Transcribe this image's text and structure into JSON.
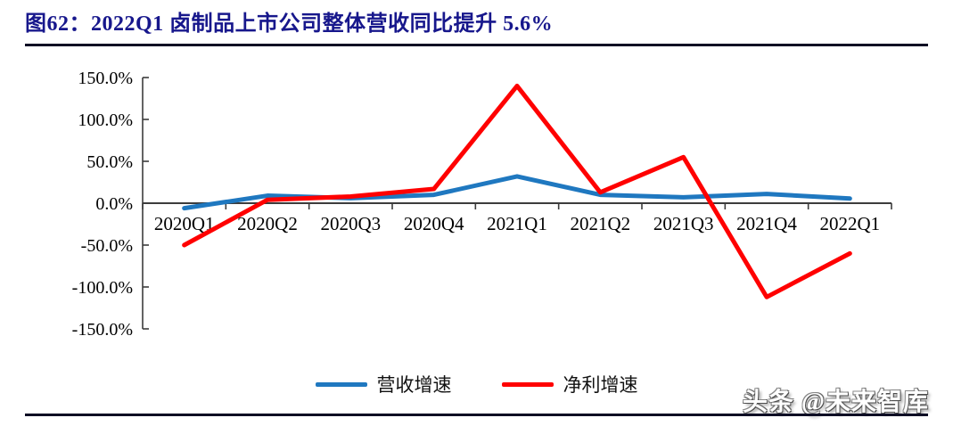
{
  "chart_data": {
    "type": "line",
    "title": "图62：2022Q1 卤制品上市公司整体营收同比提升 5.6%",
    "categories": [
      "2020Q1",
      "2020Q2",
      "2020Q3",
      "2020Q4",
      "2021Q1",
      "2021Q2",
      "2021Q3",
      "2021Q4",
      "2022Q1"
    ],
    "series": [
      {
        "name": "营收增速",
        "color": "#1f78c0",
        "values": [
          -6,
          9,
          6,
          10,
          32,
          10,
          7,
          11,
          5.6
        ]
      },
      {
        "name": "净利增速",
        "color": "#ff0000",
        "values": [
          -50,
          4,
          8,
          17,
          140,
          13,
          55,
          -112,
          -60
        ]
      }
    ],
    "xlabel": "",
    "ylabel": "",
    "ylim": [
      -150,
      150
    ],
    "y_ticks": [
      "150.0%",
      "100.0%",
      "50.0%",
      "0.0%",
      "-50.0%",
      "-100.0%",
      "-150.0%"
    ],
    "grid": false,
    "legend_position": "bottom"
  },
  "watermark": "头条 @未来智库",
  "colors": {
    "title": "#17178c",
    "divider": "#0e0e24",
    "axis": "#3c3c3c"
  }
}
